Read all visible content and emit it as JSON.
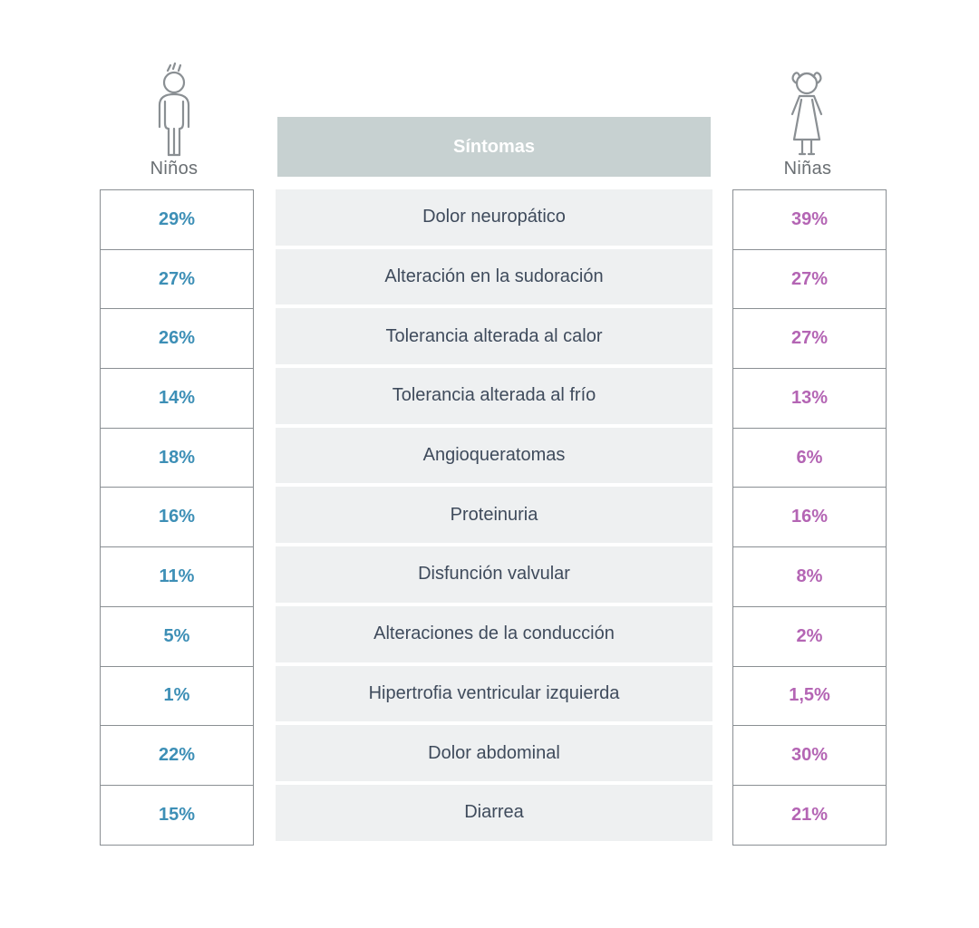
{
  "chart_data": {
    "type": "table",
    "header": "Síntomas",
    "group_labels": {
      "boys": "Niños",
      "girls": "Niñas"
    },
    "rows": [
      {
        "symptom": "Dolor neuropático",
        "boys": "29%",
        "girls": "39%"
      },
      {
        "symptom": "Alteración en la sudoración",
        "boys": "27%",
        "girls": "27%"
      },
      {
        "symptom": "Tolerancia alterada al calor",
        "boys": "26%",
        "girls": "27%"
      },
      {
        "symptom": "Tolerancia alterada al frío",
        "boys": "14%",
        "girls": "13%"
      },
      {
        "symptom": "Angioqueratomas",
        "boys": "18%",
        "girls": "6%"
      },
      {
        "symptom": "Proteinuria",
        "boys": "16%",
        "girls": "16%"
      },
      {
        "symptom": "Disfunción valvular",
        "boys": "11%",
        "girls": "8%"
      },
      {
        "symptom": "Alteraciones de la conducción",
        "boys": "5%",
        "girls": "2%"
      },
      {
        "symptom": "Hipertrofia ventricular izquierda",
        "boys": "1%",
        "girls": "1,5%"
      },
      {
        "symptom": "Dolor abdominal",
        "boys": "22%",
        "girls": "30%"
      },
      {
        "symptom": "Diarrea",
        "boys": "15%",
        "girls": "21%"
      }
    ]
  },
  "icons": {
    "boys": "boy-icon",
    "girls": "girl-icon"
  },
  "colors": {
    "boys_value": "#3d8fb6",
    "girls_value": "#b465b4",
    "header_bg": "#c7d1d1",
    "row_bg": "#eef0f1",
    "text": "#3f4b5c"
  }
}
